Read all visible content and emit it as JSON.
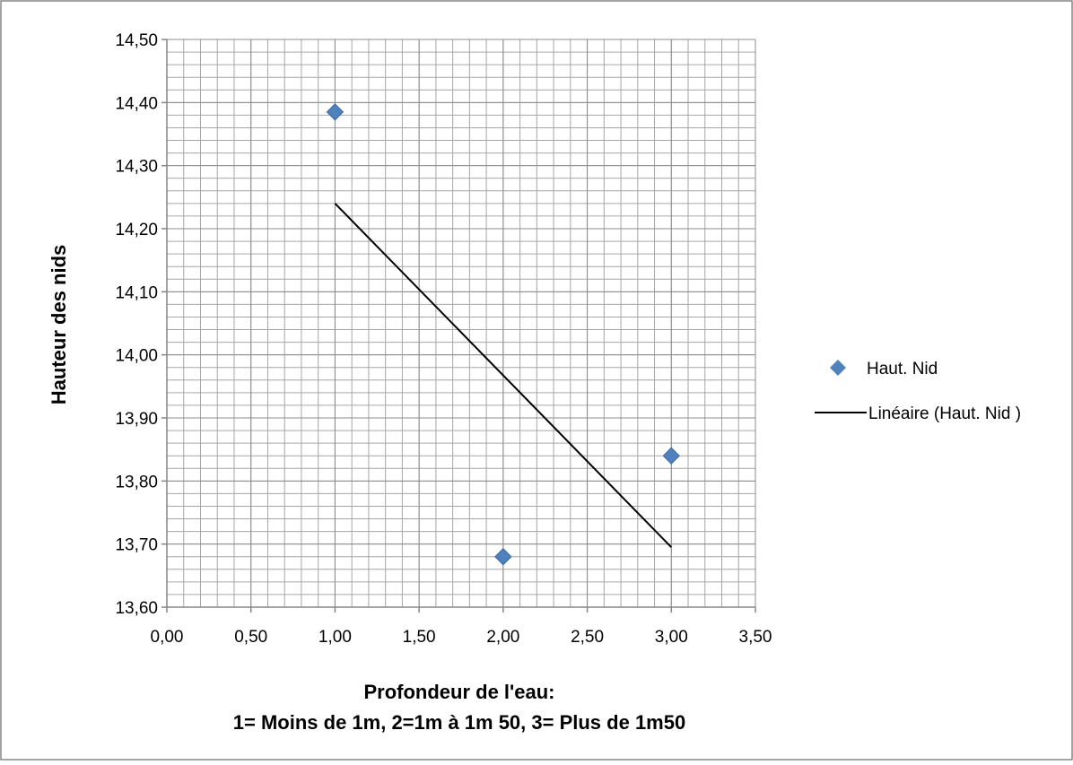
{
  "chart_data": {
    "type": "scatter",
    "xlabel": [
      "Profondeur de l'eau:",
      "1= Moins de 1m, 2=1m à 1m 50, 3= Plus de 1m50"
    ],
    "ylabel": "Hauteur des nids",
    "xlim": [
      0,
      3.5
    ],
    "ylim": [
      13.6,
      14.5
    ],
    "x_ticks": [
      "0,00",
      "0,50",
      "1,00",
      "1,50",
      "2,00",
      "2,50",
      "3,00",
      "3,50"
    ],
    "y_ticks": [
      "13,60",
      "13,70",
      "13,80",
      "13,90",
      "14,00",
      "14,10",
      "14,20",
      "14,30",
      "14,40",
      "14,50"
    ],
    "x_minor_step": 0.1,
    "y_minor_step": 0.02,
    "grid": true,
    "legend_position": "right",
    "series": [
      {
        "name": "Haut. Nid",
        "marker": "diamond",
        "color": "#4f81bd",
        "points": [
          {
            "x": 1,
            "y": 14.385
          },
          {
            "x": 2,
            "y": 13.68
          },
          {
            "x": 3,
            "y": 13.84
          }
        ]
      }
    ],
    "trendline": {
      "name": "Linéaire (Haut. Nid )",
      "color": "#000000",
      "points": [
        {
          "x": 1,
          "y": 14.24
        },
        {
          "x": 3,
          "y": 13.695
        }
      ]
    }
  },
  "colors": {
    "grid": "#a6a6a6",
    "axis": "#868686",
    "frame": "#868686",
    "marker": "#4f81bd"
  }
}
